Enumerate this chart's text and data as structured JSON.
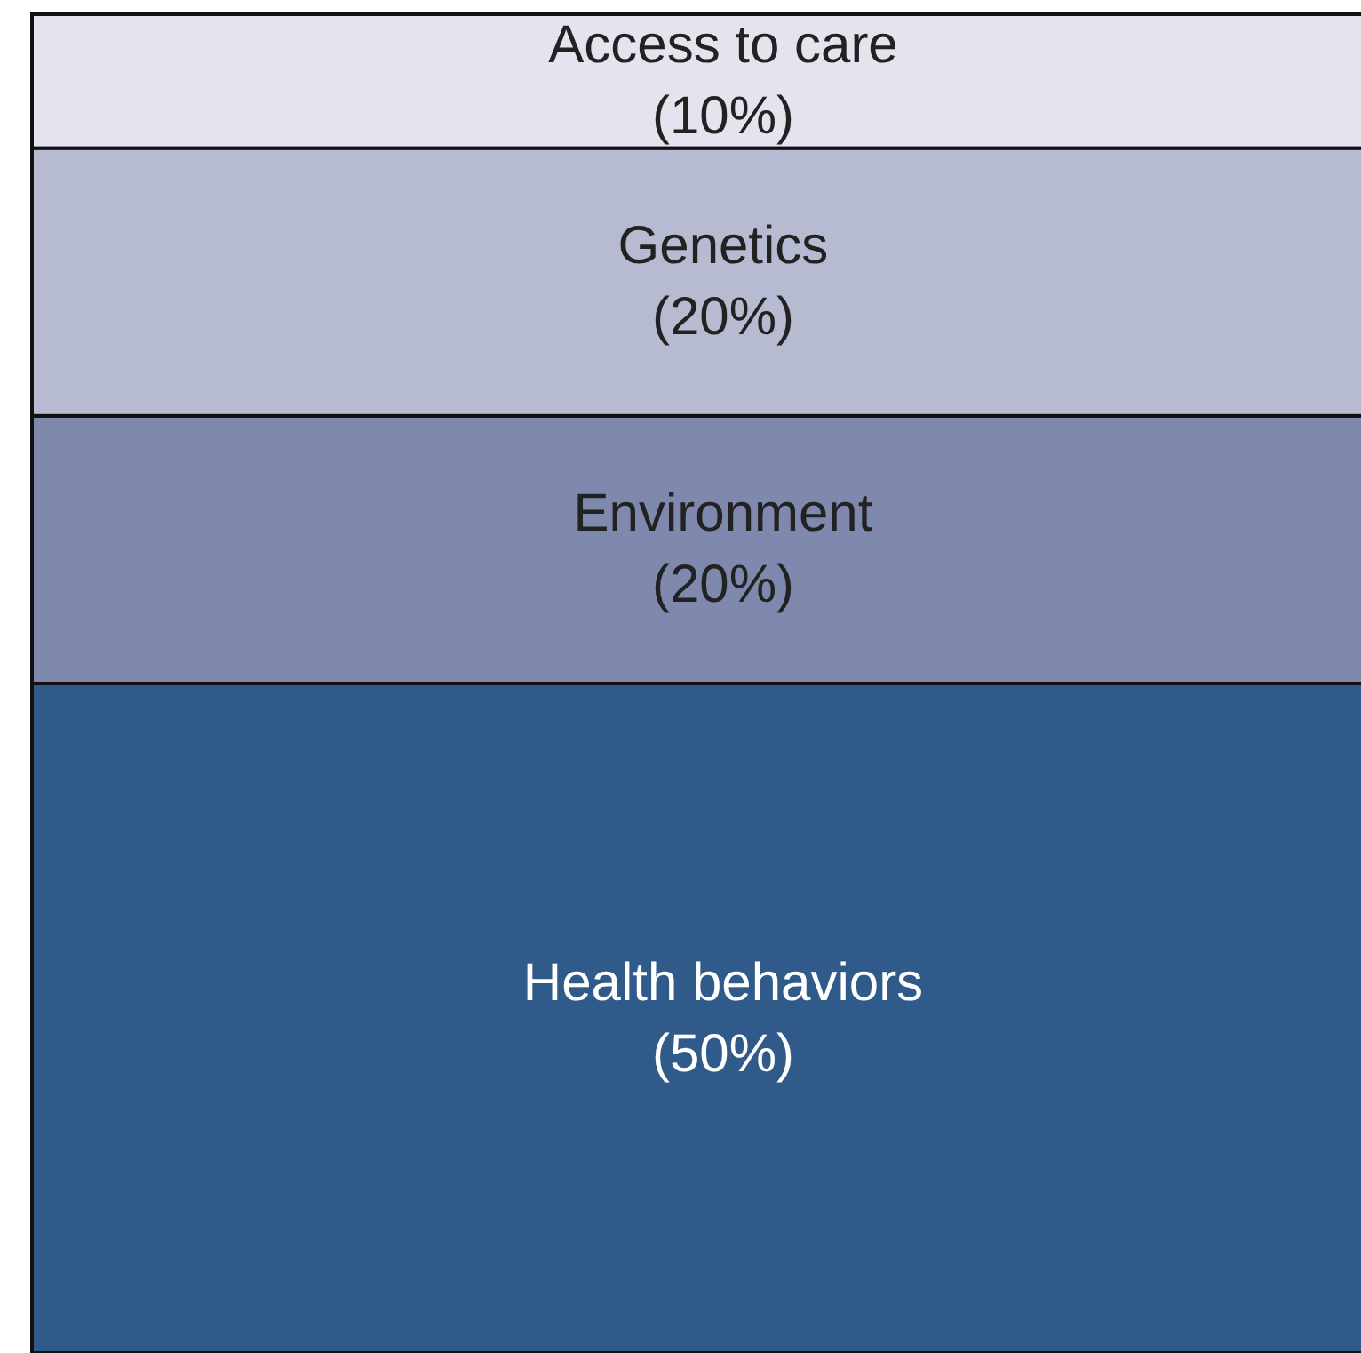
{
  "chart_data": {
    "type": "bar",
    "stacked": true,
    "categories": [
      null
    ],
    "series": [
      {
        "name": "Health behaviors",
        "color": "#305a8a",
        "values": [
          50
        ],
        "value_labels": [
          "(50%)"
        ]
      },
      {
        "name": "Environment",
        "color": "#7f89ae",
        "values": [
          20
        ],
        "value_labels": [
          "(20%)"
        ]
      },
      {
        "name": "Genetics",
        "color": "#b6bbd1",
        "values": [
          20
        ],
        "value_labels": [
          "(20%)"
        ]
      },
      {
        "name": "Access to care",
        "color": "#e3e4ee",
        "values": [
          10
        ],
        "value_labels": [
          "(10%)"
        ]
      }
    ]
  }
}
